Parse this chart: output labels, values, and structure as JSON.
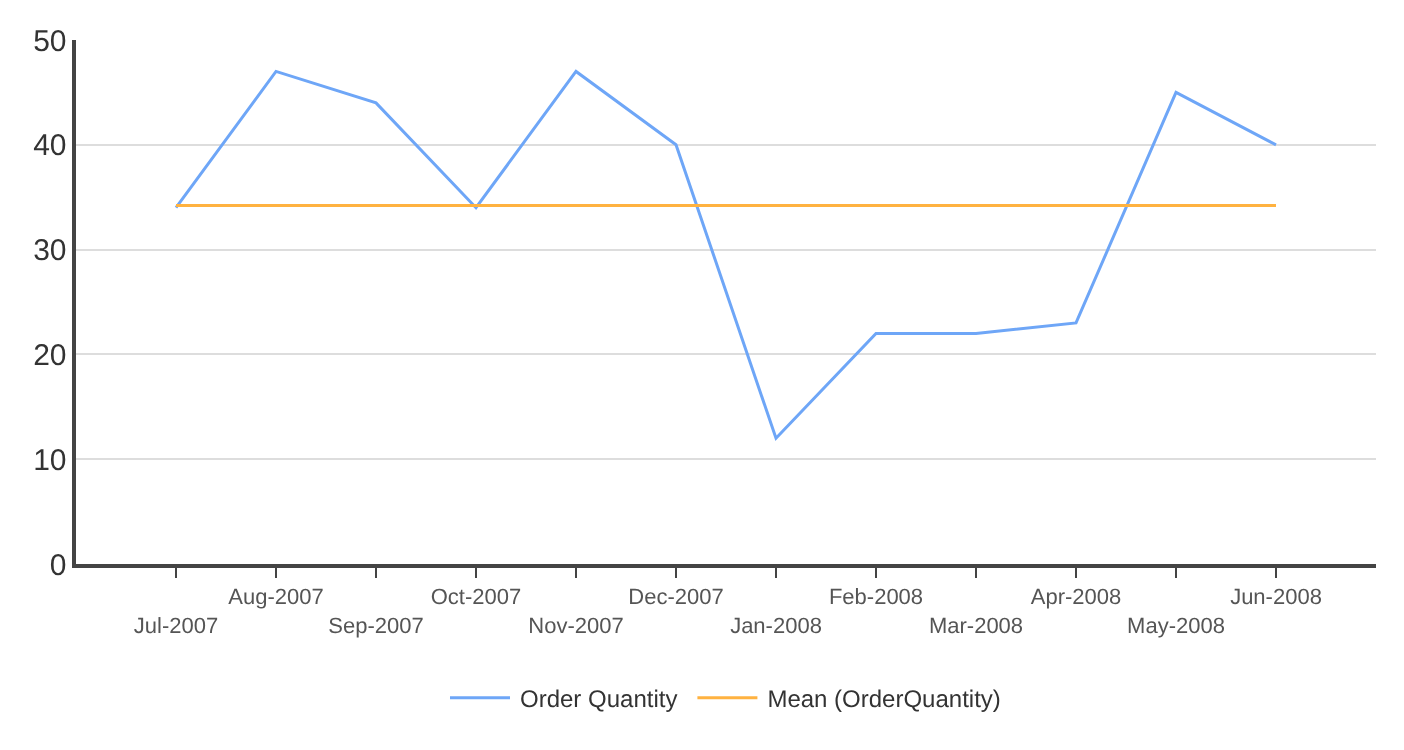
{
  "chart_data": {
    "type": "line",
    "categories": [
      "Jul-2007",
      "Aug-2007",
      "Sep-2007",
      "Oct-2007",
      "Nov-2007",
      "Dec-2007",
      "Jan-2008",
      "Feb-2008",
      "Mar-2008",
      "Apr-2008",
      "May-2008",
      "Jun-2008"
    ],
    "series": [
      {
        "name": "Order Quantity",
        "color": "#6ea6f7",
        "values": [
          34,
          47,
          44,
          34,
          47,
          40,
          12,
          22,
          22,
          23,
          45,
          40
        ]
      },
      {
        "name": "Mean (OrderQuantity)",
        "color": "#ffb240",
        "values": [
          34.2,
          34.2,
          34.2,
          34.2,
          34.2,
          34.2,
          34.2,
          34.2,
          34.2,
          34.2,
          34.2,
          34.2
        ]
      }
    ],
    "ylim": [
      0,
      50
    ],
    "yticks": [
      0,
      10,
      20,
      30,
      40,
      50
    ],
    "grid": "y",
    "legend": "bottom",
    "marker": "none",
    "line_style": "solid"
  }
}
